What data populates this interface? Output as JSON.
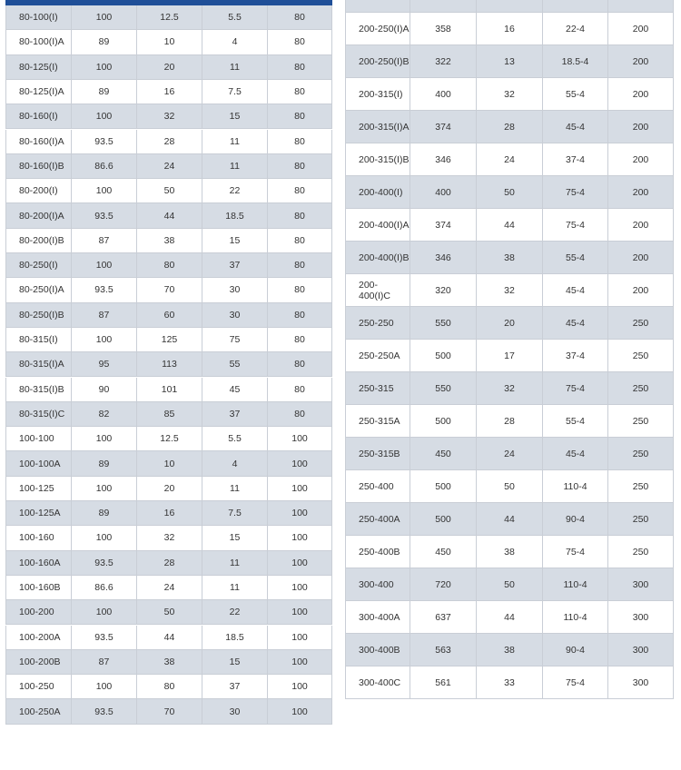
{
  "left_table": {
    "rows": [
      [
        "80-100(I)",
        "100",
        "12.5",
        "5.5",
        "80"
      ],
      [
        "80-100(I)A",
        "89",
        "10",
        "4",
        "80"
      ],
      [
        "80-125(I)",
        "100",
        "20",
        "11",
        "80"
      ],
      [
        "80-125(I)A",
        "89",
        "16",
        "7.5",
        "80"
      ],
      [
        "80-160(I)",
        "100",
        "32",
        "15",
        "80"
      ],
      [
        "80-160(I)A",
        "93.5",
        "28",
        "11",
        "80"
      ],
      [
        "80-160(I)B",
        "86.6",
        "24",
        "11",
        "80"
      ],
      [
        "80-200(I)",
        "100",
        "50",
        "22",
        "80"
      ],
      [
        "80-200(I)A",
        "93.5",
        "44",
        "18.5",
        "80"
      ],
      [
        "80-200(I)B",
        "87",
        "38",
        "15",
        "80"
      ],
      [
        "80-250(I)",
        "100",
        "80",
        "37",
        "80"
      ],
      [
        "80-250(I)A",
        "93.5",
        "70",
        "30",
        "80"
      ],
      [
        "80-250(I)B",
        "87",
        "60",
        "30",
        "80"
      ],
      [
        "80-315(I)",
        "100",
        "125",
        "75",
        "80"
      ],
      [
        "80-315(I)A",
        "95",
        "113",
        "55",
        "80"
      ],
      [
        "80-315(I)B",
        "90",
        "101",
        "45",
        "80"
      ],
      [
        "80-315(I)C",
        "82",
        "85",
        "37",
        "80"
      ],
      [
        "100-100",
        "100",
        "12.5",
        "5.5",
        "100"
      ],
      [
        "100-100A",
        "89",
        "10",
        "4",
        "100"
      ],
      [
        "100-125",
        "100",
        "20",
        "11",
        "100"
      ],
      [
        "100-125A",
        "89",
        "16",
        "7.5",
        "100"
      ],
      [
        "100-160",
        "100",
        "32",
        "15",
        "100"
      ],
      [
        "100-160A",
        "93.5",
        "28",
        "11",
        "100"
      ],
      [
        "100-160B",
        "86.6",
        "24",
        "11",
        "100"
      ],
      [
        "100-200",
        "100",
        "50",
        "22",
        "100"
      ],
      [
        "100-200A",
        "93.5",
        "44",
        "18.5",
        "100"
      ],
      [
        "100-200B",
        "87",
        "38",
        "15",
        "100"
      ],
      [
        "100-250",
        "100",
        "80",
        "37",
        "100"
      ],
      [
        "100-250A",
        "93.5",
        "70",
        "30",
        "100"
      ]
    ]
  },
  "right_table": {
    "rows": [
      [
        "200-250(I)A",
        "358",
        "16",
        "22-4",
        "200"
      ],
      [
        "200-250(I)B",
        "322",
        "13",
        "18.5-4",
        "200"
      ],
      [
        "200-315(I)",
        "400",
        "32",
        "55-4",
        "200"
      ],
      [
        "200-315(I)A",
        "374",
        "28",
        "45-4",
        "200"
      ],
      [
        "200-315(I)B",
        "346",
        "24",
        "37-4",
        "200"
      ],
      [
        "200-400(I)",
        "400",
        "50",
        "75-4",
        "200"
      ],
      [
        "200-400(I)A",
        "374",
        "44",
        "75-4",
        "200"
      ],
      [
        "200-400(I)B",
        "346",
        "38",
        "55-4",
        "200"
      ],
      [
        "200-400(I)C",
        "320",
        "32",
        "45-4",
        "200"
      ],
      [
        "250-250",
        "550",
        "20",
        "45-4",
        "250"
      ],
      [
        "250-250A",
        "500",
        "17",
        "37-4",
        "250"
      ],
      [
        "250-315",
        "550",
        "32",
        "75-4",
        "250"
      ],
      [
        "250-315A",
        "500",
        "28",
        "55-4",
        "250"
      ],
      [
        "250-315B",
        "450",
        "24",
        "45-4",
        "250"
      ],
      [
        "250-400",
        "500",
        "50",
        "110-4",
        "250"
      ],
      [
        "250-400A",
        "500",
        "44",
        "90-4",
        "250"
      ],
      [
        "250-400B",
        "450",
        "38",
        "75-4",
        "250"
      ],
      [
        "300-400",
        "720",
        "50",
        "110-4",
        "300"
      ],
      [
        "300-400A",
        "637",
        "44",
        "110-4",
        "300"
      ],
      [
        "300-400B",
        "563",
        "38",
        "90-4",
        "300"
      ],
      [
        "300-400C",
        "561",
        "33",
        "75-4",
        "300"
      ]
    ]
  }
}
